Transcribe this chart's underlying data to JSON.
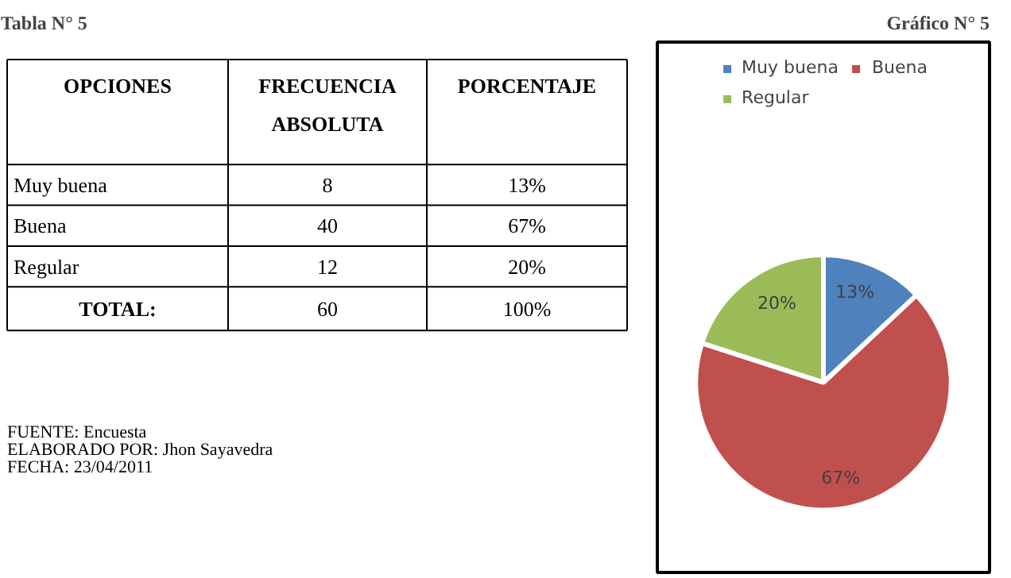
{
  "chart_data": [
    {
      "type": "other",
      "title": "Tabla N° 5",
      "annotations": [
        "OPCIONES",
        "FRECUENCIA ABSOLUTA",
        "PORCENTAJE",
        "Muy buena",
        "8",
        "13%",
        "Buena",
        "40",
        "67%",
        "Regular",
        "12",
        "20%",
        "TOTAL:",
        "60",
        "100%",
        "FUENTE: Encuesta",
        "ELABORADO POR: Jhon Sayavedra",
        "FECHA: 23/04/2011"
      ]
    },
    {
      "type": "pie",
      "title": "Gráfico N° 5",
      "categories": [
        "Muy buena",
        "Buena",
        "Regular"
      ],
      "values": [
        13,
        67,
        20
      ],
      "colors": [
        "#4f81bd",
        "#c0504d",
        "#9bbb59"
      ],
      "value_labels": [
        "13%",
        "67%",
        "20%"
      ],
      "legend": "top"
    }
  ]
}
